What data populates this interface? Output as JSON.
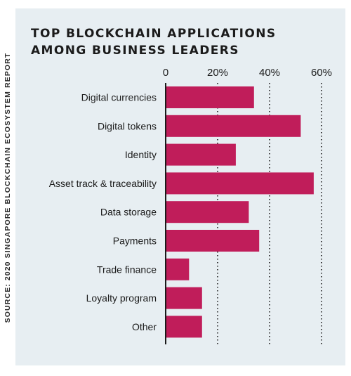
{
  "source_note": "SOURCE: 2020 SINGAPORE BLOCKCHAIN ECOSYSTEM REPORT",
  "title_lines": [
    "TOP BLOCKCHAIN APPLICATIONS",
    "AMONG BUSINESS LEADERS"
  ],
  "colors": {
    "bar": "#c01d5a",
    "panel": "#e7eef2",
    "text": "#1b1b1b"
  },
  "chart_data": {
    "type": "bar",
    "orientation": "horizontal",
    "title": "TOP BLOCKCHAIN APPLICATIONS AMONG BUSINESS LEADERS",
    "categories": [
      "Digital currencies",
      "Digital tokens",
      "Identity",
      "Asset track & traceability",
      "Data storage",
      "Payments",
      "Trade finance",
      "Loyalty program",
      "Other"
    ],
    "values": [
      34,
      52,
      27,
      57,
      32,
      36,
      9,
      14,
      14
    ],
    "xlim": [
      0,
      60
    ],
    "xticks": [
      0,
      20,
      40,
      60
    ],
    "xtick_labels": [
      "0",
      "20%",
      "40%",
      "60%"
    ],
    "grid": "dotted vertical",
    "xlabel": "",
    "ylabel": ""
  }
}
